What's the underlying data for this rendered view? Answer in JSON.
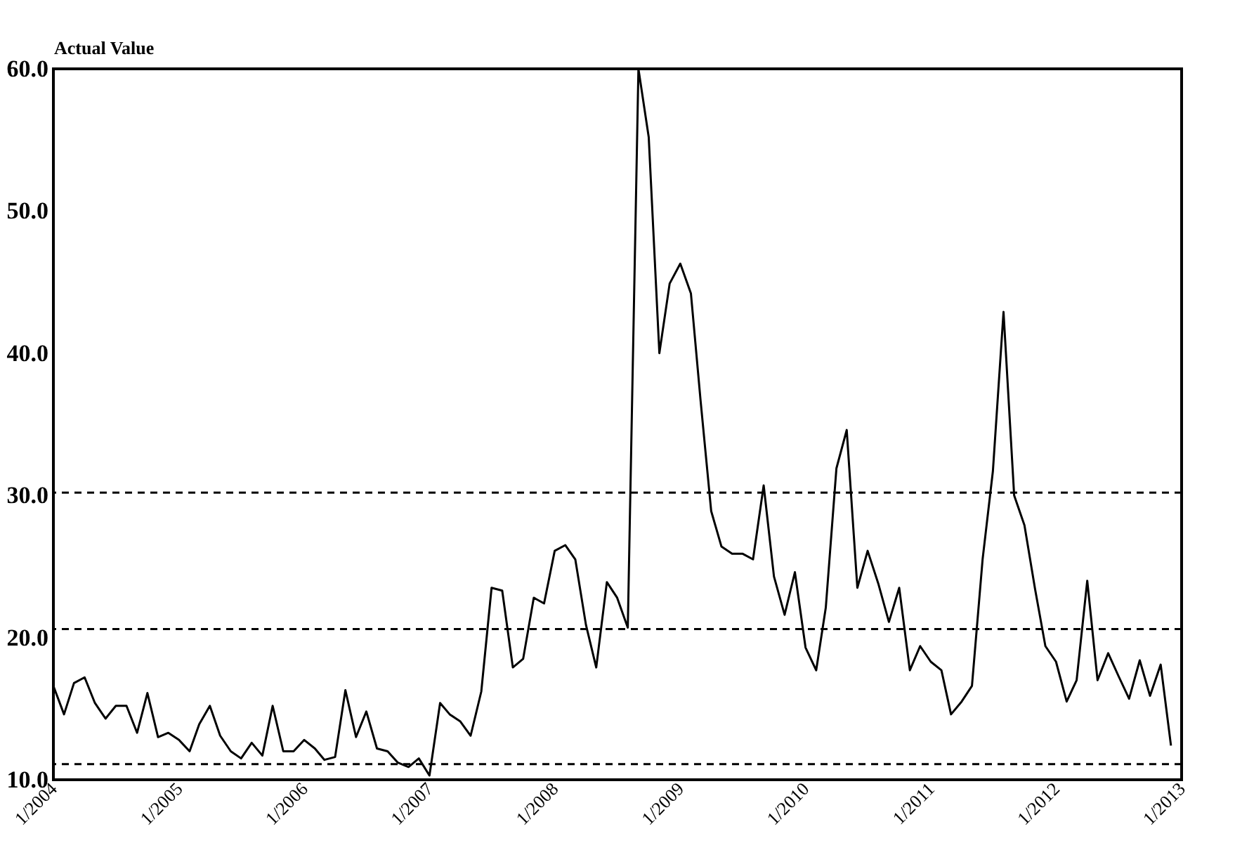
{
  "chart_data": {
    "type": "line",
    "ylabel": "Actual Value",
    "x": [
      "2004-01",
      "2004-02",
      "2004-03",
      "2004-04",
      "2004-05",
      "2004-06",
      "2004-07",
      "2004-08",
      "2004-09",
      "2004-10",
      "2004-11",
      "2004-12",
      "2005-01",
      "2005-02",
      "2005-03",
      "2005-04",
      "2005-05",
      "2005-06",
      "2005-07",
      "2005-08",
      "2005-09",
      "2005-10",
      "2005-11",
      "2005-12",
      "2006-01",
      "2006-02",
      "2006-03",
      "2006-04",
      "2006-05",
      "2006-06",
      "2006-07",
      "2006-08",
      "2006-09",
      "2006-10",
      "2006-11",
      "2006-12",
      "2007-01",
      "2007-02",
      "2007-03",
      "2007-04",
      "2007-05",
      "2007-06",
      "2007-07",
      "2007-08",
      "2007-09",
      "2007-10",
      "2007-11",
      "2007-12",
      "2008-01",
      "2008-02",
      "2008-03",
      "2008-04",
      "2008-05",
      "2008-06",
      "2008-07",
      "2008-08",
      "2008-09",
      "2008-10",
      "2008-11",
      "2008-12",
      "2009-01",
      "2009-02",
      "2009-03",
      "2009-04",
      "2009-05",
      "2009-06",
      "2009-07",
      "2009-08",
      "2009-09",
      "2009-10",
      "2009-11",
      "2009-12",
      "2010-01",
      "2010-02",
      "2010-03",
      "2010-04",
      "2010-05",
      "2010-06",
      "2010-07",
      "2010-08",
      "2010-09",
      "2010-10",
      "2010-11",
      "2010-12",
      "2011-01",
      "2011-02",
      "2011-03",
      "2011-04",
      "2011-05",
      "2011-06",
      "2011-07",
      "2011-08",
      "2011-09",
      "2011-10",
      "2011-11",
      "2011-12",
      "2012-01",
      "2012-02",
      "2012-03",
      "2012-04",
      "2012-05",
      "2012-06",
      "2012-07",
      "2012-08",
      "2012-09",
      "2012-10",
      "2012-11",
      "2012-12"
    ],
    "series": [
      {
        "color": "#000000",
        "values": [
          16.6,
          14.6,
          16.8,
          17.2,
          15.4,
          14.3,
          15.2,
          15.2,
          13.3,
          16.1,
          13.0,
          13.3,
          12.8,
          12.0,
          13.9,
          15.2,
          13.1,
          12.0,
          11.5,
          12.6,
          11.7,
          15.2,
          12.0,
          12.0,
          12.8,
          12.2,
          11.4,
          11.6,
          16.3,
          13.0,
          14.8,
          12.2,
          12.0,
          11.2,
          10.9,
          11.5,
          10.3,
          15.4,
          14.6,
          14.1,
          13.1,
          16.2,
          23.5,
          23.3,
          17.9,
          18.5,
          22.8,
          22.4,
          26.1,
          26.5,
          25.5,
          20.9,
          17.9,
          23.9,
          22.8,
          20.7,
          60.0,
          55.2,
          40.0,
          44.9,
          46.3,
          44.2,
          36.7,
          28.9,
          26.4,
          25.9,
          25.9,
          25.5,
          30.7,
          24.3,
          21.6,
          24.6,
          19.3,
          17.7,
          22.1,
          31.9,
          34.6,
          23.5,
          26.1,
          23.8,
          21.1,
          23.5,
          17.7,
          19.4,
          18.3,
          17.7,
          14.6,
          15.5,
          16.6,
          25.5,
          31.7,
          42.9,
          30.0,
          27.9,
          23.4,
          19.4,
          18.3,
          15.5,
          17.0,
          24.0,
          17.0,
          18.9,
          17.3,
          15.7,
          18.4,
          15.9,
          18.1,
          12.4
        ]
      }
    ],
    "xlim": [
      "2004-01",
      "2013-01"
    ],
    "xticks": [
      {
        "value": "2004-01",
        "label": "1/2004"
      },
      {
        "value": "2005-01",
        "label": "1/2005"
      },
      {
        "value": "2006-01",
        "label": "1/2006"
      },
      {
        "value": "2007-01",
        "label": "1/2007"
      },
      {
        "value": "2008-01",
        "label": "1/2008"
      },
      {
        "value": "2009-01",
        "label": "1/2009"
      },
      {
        "value": "2010-01",
        "label": "1/2010"
      },
      {
        "value": "2011-01",
        "label": "1/2011"
      },
      {
        "value": "2012-01",
        "label": "1/2012"
      },
      {
        "value": "2013-01",
        "label": "1/2013"
      }
    ],
    "ylim": [
      10,
      60
    ],
    "yticks": [
      {
        "value": 10,
        "label": "10.0"
      },
      {
        "value": 20,
        "label": "20.0"
      },
      {
        "value": 30,
        "label": "30.0"
      },
      {
        "value": 40,
        "label": "40.0"
      },
      {
        "value": 50,
        "label": "50.0"
      },
      {
        "value": 60,
        "label": "60.0"
      }
    ],
    "ref_lines": [
      {
        "axis": "y",
        "value": 30.2,
        "line_style": "dashed"
      },
      {
        "axis": "y",
        "value": 20.6,
        "line_style": "dashed"
      },
      {
        "axis": "y",
        "value": 11.1,
        "line_style": "dashed"
      }
    ],
    "grid": false,
    "line_style": "solid",
    "marker": "none"
  }
}
